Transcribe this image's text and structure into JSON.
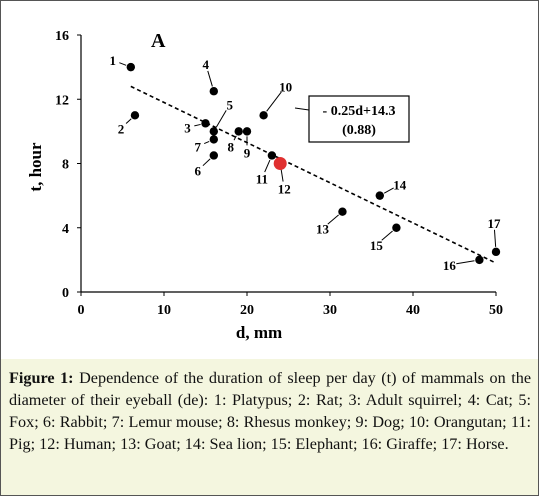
{
  "chart_data": {
    "type": "scatter",
    "panel_label": "A",
    "xlabel": "d, mm",
    "ylabel": "t, hour",
    "xlim": [
      0,
      50
    ],
    "ylim": [
      0,
      16
    ],
    "x_ticks": [
      "0",
      "10",
      "20",
      "30",
      "40",
      "50"
    ],
    "y_ticks": [
      "0",
      "4",
      "8",
      "12",
      "16"
    ],
    "grid": false,
    "points": [
      {
        "label": "1",
        "x": 6.0,
        "y": 14.0
      },
      {
        "label": "2",
        "x": 6.5,
        "y": 11.0
      },
      {
        "label": "3",
        "x": 15.0,
        "y": 10.5
      },
      {
        "label": "4",
        "x": 16.0,
        "y": 12.5
      },
      {
        "label": "5",
        "x": 16.0,
        "y": 10.0
      },
      {
        "label": "6",
        "x": 16.0,
        "y": 8.5
      },
      {
        "label": "7",
        "x": 16.0,
        "y": 9.5
      },
      {
        "label": "8",
        "x": 19.0,
        "y": 10.0
      },
      {
        "label": "9",
        "x": 20.0,
        "y": 10.0
      },
      {
        "label": "10",
        "x": 22.0,
        "y": 11.0
      },
      {
        "label": "11",
        "x": 23.0,
        "y": 8.5
      },
      {
        "label": "12",
        "x": 24.0,
        "y": 8.0,
        "highlight": true
      },
      {
        "label": "13",
        "x": 31.5,
        "y": 5.0
      },
      {
        "label": "14",
        "x": 36.0,
        "y": 6.0
      },
      {
        "label": "15",
        "x": 38.0,
        "y": 4.0
      },
      {
        "label": "16",
        "x": 48.0,
        "y": 2.0
      },
      {
        "label": "17",
        "x": 50.0,
        "y": 2.5
      }
    ],
    "trendline": {
      "slope": -0.25,
      "intercept": 14.3,
      "x_range": [
        6,
        50
      ]
    },
    "annotation": {
      "equation": "- 0.25d+14.3",
      "r_value": "(0.88)"
    },
    "colors": {
      "point": "#000000",
      "highlight": "#e03030",
      "trendline": "#000000"
    }
  },
  "caption": {
    "label": "Figure 1:",
    "text": " Dependence of the duration of sleep per day (t) of mammals on the diameter of their eyeball (de): 1: Platypus; 2: Rat; 3: Adult squirrel; 4: Cat; 5: Fox; 6: Rabbit; 7: Lemur mouse; 8: Rhesus monkey; 9: Dog; 10: Orangutan; 11: Pig; 12: Human; 13: Goat; 14: Sea lion; 15: Elephant; 16: Giraffe; 17: Horse.",
    "background": "#f4f6df"
  }
}
